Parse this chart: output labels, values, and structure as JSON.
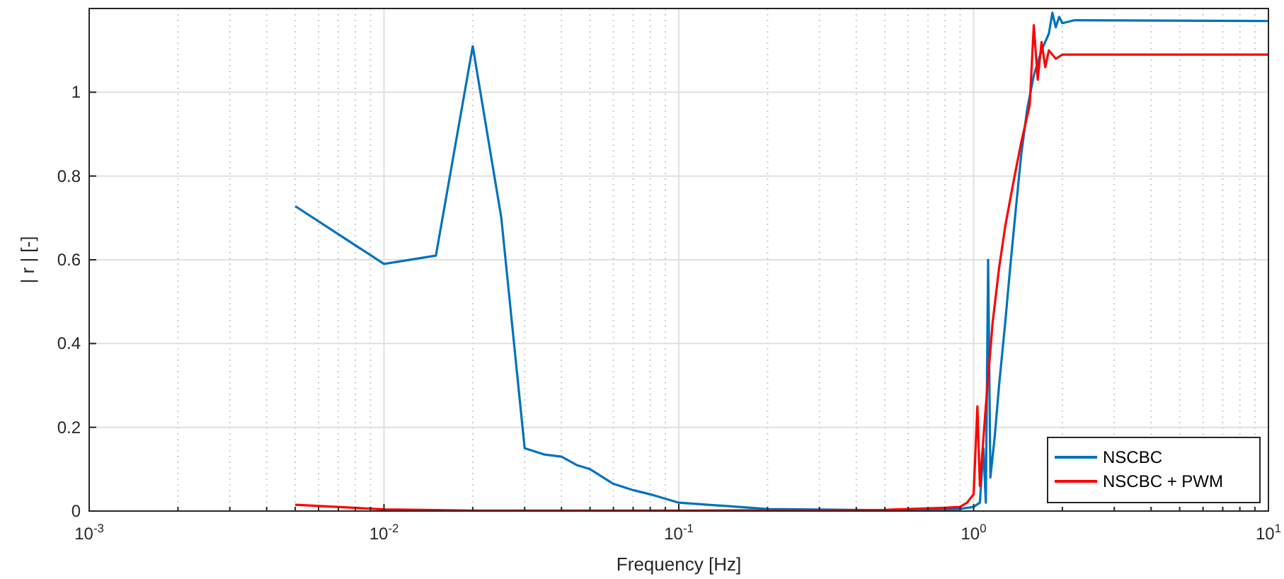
{
  "chart_data": {
    "type": "line",
    "xlabel": "Frequency [Hz]",
    "ylabel": "| r | [-]",
    "log": "x",
    "grid": true,
    "legend": "bottom right",
    "line_style": "solid",
    "marker": "none",
    "xlim": [
      0.001,
      10
    ],
    "xticks": [
      {
        "value": 0.001,
        "label": "10$^{-3}$"
      },
      {
        "value": 0.01,
        "label": "10$^{-2}$"
      },
      {
        "value": 0.1,
        "label": "10$^{-1}$"
      },
      {
        "value": 1,
        "label": "10$^{0}$"
      },
      {
        "value": 10,
        "label": "10$^{1}$"
      }
    ],
    "ylim": [
      0,
      1.2
    ],
    "yticks": [
      0,
      0.2,
      0.4,
      0.6,
      0.8,
      1
    ],
    "series": [
      {
        "name": "NSCBC",
        "color": "#0072bd",
        "x": [
          0.005,
          0.01,
          0.015,
          0.02,
          0.025,
          0.03,
          0.035,
          0.04,
          0.045,
          0.05,
          0.06,
          0.07,
          0.08,
          0.1,
          0.2,
          0.5,
          0.9,
          1.0,
          1.05,
          1.08,
          1.1,
          1.12,
          1.14,
          1.16,
          1.18,
          1.2,
          1.22,
          1.25,
          1.28,
          1.3,
          1.33,
          1.36,
          1.39,
          1.42,
          1.45,
          1.48,
          1.52,
          1.56,
          1.6,
          1.65,
          1.7,
          1.75,
          1.8,
          1.85,
          1.9,
          1.95,
          2.0,
          2.2,
          10
        ],
        "values": [
          0.728,
          0.59,
          0.61,
          1.11,
          0.7,
          0.15,
          0.135,
          0.13,
          0.11,
          0.1,
          0.065,
          0.05,
          0.04,
          0.02,
          0.005,
          0.002,
          0.005,
          0.01,
          0.02,
          0.15,
          0.02,
          0.6,
          0.08,
          null,
          0.18,
          null,
          0.3,
          null,
          0.45,
          null,
          0.58,
          null,
          0.72,
          null,
          0.85,
          null,
          0.96,
          null,
          1.04,
          null,
          1.1,
          null,
          1.14,
          1.19,
          1.155,
          1.18,
          1.165,
          1.172,
          1.17
        ]
      },
      {
        "name": "NSCBC + PWM",
        "color": "#ff0000",
        "x": [
          0.005,
          0.01,
          0.02,
          0.1,
          0.5,
          0.8,
          0.9,
          0.95,
          1.0,
          1.03,
          1.05,
          1.08,
          1.1,
          1.13,
          1.16,
          1.19,
          1.22,
          1.25,
          1.28,
          1.32,
          1.36,
          1.4,
          1.45,
          1.5,
          1.55,
          1.6,
          1.65,
          1.7,
          1.75,
          1.8,
          1.9,
          2.0,
          10
        ],
        "values": [
          0.015,
          0.004,
          0.001,
          0.001,
          0.003,
          0.008,
          0.01,
          0.02,
          0.04,
          0.25,
          0.06,
          null,
          0.25,
          null,
          0.45,
          null,
          0.58,
          null,
          0.68,
          null,
          0.78,
          null,
          0.88,
          null,
          0.97,
          1.16,
          1.03,
          1.12,
          1.06,
          1.1,
          1.08,
          1.09,
          1.09
        ]
      }
    ]
  }
}
